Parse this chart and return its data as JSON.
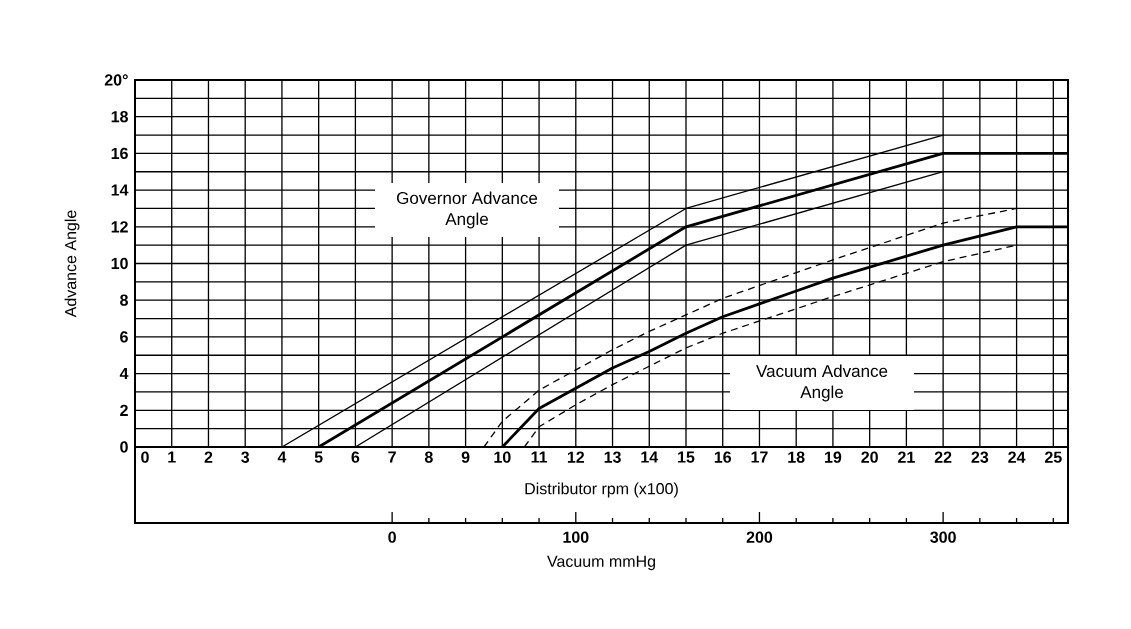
{
  "chart_data": {
    "type": "line",
    "xlabel": "Distributor rpm (x100)",
    "ylabel": "Advance Angle",
    "x2label": "Vacuum mmHg",
    "annotations": [
      "Governor Advance Angle",
      "Vacuum Advance Angle"
    ],
    "xlim": [
      0,
      25.4
    ],
    "ylim": [
      0,
      20
    ],
    "x2lim": [
      -140,
      368
    ],
    "xticks": [
      0,
      1,
      2,
      3,
      4,
      5,
      6,
      7,
      8,
      9,
      10,
      11,
      12,
      13,
      14,
      15,
      16,
      17,
      18,
      19,
      20,
      21,
      22,
      23,
      24,
      25
    ],
    "yticks": [
      0,
      {
        "value": 1,
        "label": null
      },
      2,
      {
        "value": 3,
        "label": null
      },
      4,
      {
        "value": 5,
        "label": null
      },
      6,
      {
        "value": 7,
        "label": null
      },
      8,
      {
        "value": 9,
        "label": null
      },
      10,
      {
        "value": 11,
        "label": null
      },
      12,
      {
        "value": 13,
        "label": null
      },
      14,
      {
        "value": 15,
        "label": null
      },
      16,
      {
        "value": 17,
        "label": null
      },
      18,
      {
        "value": 19,
        "label": null
      },
      {
        "value": 20,
        "label": "20°"
      }
    ],
    "x2ticks": [
      0,
      {
        "value": 20,
        "label": null
      },
      {
        "value": 40,
        "label": null
      },
      {
        "value": 60,
        "label": null
      },
      {
        "value": 80,
        "label": null
      },
      100,
      {
        "value": 120,
        "label": null
      },
      {
        "value": 140,
        "label": null
      },
      {
        "value": 160,
        "label": null
      },
      {
        "value": 180,
        "label": null
      },
      200,
      {
        "value": 220,
        "label": null
      },
      {
        "value": 240,
        "label": null
      },
      {
        "value": 260,
        "label": null
      },
      {
        "value": 280,
        "label": null
      },
      300,
      {
        "value": 320,
        "label": null
      },
      {
        "value": 340,
        "label": null
      },
      {
        "value": 360,
        "label": null
      }
    ],
    "grid": true,
    "series": [
      {
        "color": "#000000",
        "line_style": "solid",
        "x": [
          5,
          15,
          22,
          25.4
        ],
        "values": [
          0,
          12,
          16,
          16
        ]
      },
      {
        "color": "#000000",
        "line_style": "solid",
        "x": [
          4,
          15,
          22
        ],
        "values": [
          0,
          13,
          17
        ]
      },
      {
        "color": "#000000",
        "line_style": "solid",
        "x": [
          6,
          15,
          22
        ],
        "values": [
          0,
          11,
          15
        ]
      },
      {
        "color": "#000000",
        "line_style": "solid",
        "axis": "x2",
        "x": [
          60,
          80,
          100,
          120,
          140,
          160,
          180,
          200,
          220,
          240,
          300,
          340,
          368
        ],
        "values": [
          0,
          2.1,
          3.2,
          4.3,
          5.2,
          6.2,
          7.1,
          7.8,
          8.5,
          9.2,
          11,
          12,
          12
        ]
      },
      {
        "color": "#000000",
        "line_style": "dashed",
        "axis": "x2",
        "x": [
          50,
          60,
          80,
          100,
          120,
          140,
          160,
          180,
          240,
          300,
          340
        ],
        "values": [
          0,
          1.4,
          3.1,
          4.2,
          5.3,
          6.3,
          7.2,
          8.1,
          10.2,
          12.2,
          13
        ]
      },
      {
        "color": "#000000",
        "line_style": "dashed",
        "axis": "x2",
        "x": [
          72,
          80,
          100,
          120,
          140,
          160,
          180,
          240,
          300,
          340
        ],
        "values": [
          0,
          1.1,
          2.3,
          3.4,
          4.4,
          5.4,
          6.2,
          8.2,
          10.1,
          11
        ]
      }
    ]
  }
}
